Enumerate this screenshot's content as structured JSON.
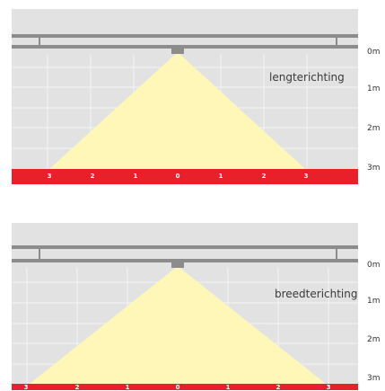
{
  "diagrams": [
    {
      "direction_label": "lengterichting",
      "depth_labels": [
        "0m",
        "1m",
        "2m",
        "3m"
      ],
      "distance_ticks": [
        "3",
        "2",
        "1",
        "0",
        "1",
        "2",
        "3"
      ]
    },
    {
      "direction_label": "breedterichting",
      "depth_labels": [
        "0m",
        "1m",
        "2m",
        "3m"
      ],
      "distance_ticks": [
        "3",
        "2",
        "1",
        "0",
        "1",
        "2",
        "3"
      ]
    }
  ],
  "colors": {
    "background": "#e2e2e2",
    "grid": "#f2f2f2",
    "rail": "#8c8c8c",
    "light_cone": "#fff7b8",
    "floor": "#e8202a"
  }
}
